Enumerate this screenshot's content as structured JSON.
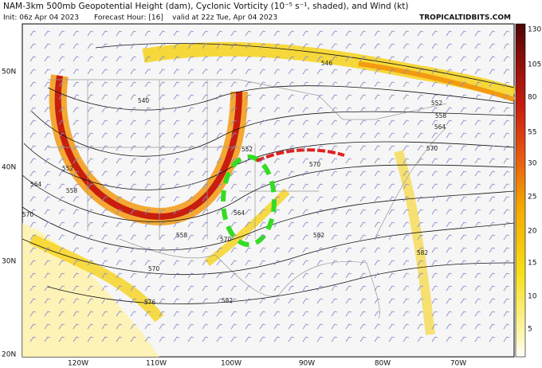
{
  "header": {
    "title": "NAM-3km 500mb Geopotential Height (dam), Cyclonic Vorticity (10⁻⁵ s⁻¹, shaded), and Wind (kt)",
    "init": "Init: 06z Apr 04 2023",
    "forecast_hour": "Forecast Hour: [16]",
    "valid": "valid at 22z Tue, Apr 04 2023",
    "site": "TROPICALTIDBITS.COM"
  },
  "map": {
    "latitude_labels": [
      "50N",
      "40N",
      "30N",
      "20N"
    ],
    "longitude_labels": [
      "120W",
      "110W",
      "100W",
      "90W",
      "80W",
      "70W"
    ],
    "contour_labels": [
      "546",
      "540",
      "552",
      "558",
      "564",
      "570",
      "552",
      "558",
      "564",
      "570",
      "552",
      "570",
      "564",
      "558",
      "570",
      "582",
      "582",
      "576",
      "582",
      "570"
    ],
    "colorbar_labels": [
      "130",
      "105",
      "80",
      "55",
      "30",
      "25",
      "20",
      "15",
      "10",
      "5"
    ]
  }
}
